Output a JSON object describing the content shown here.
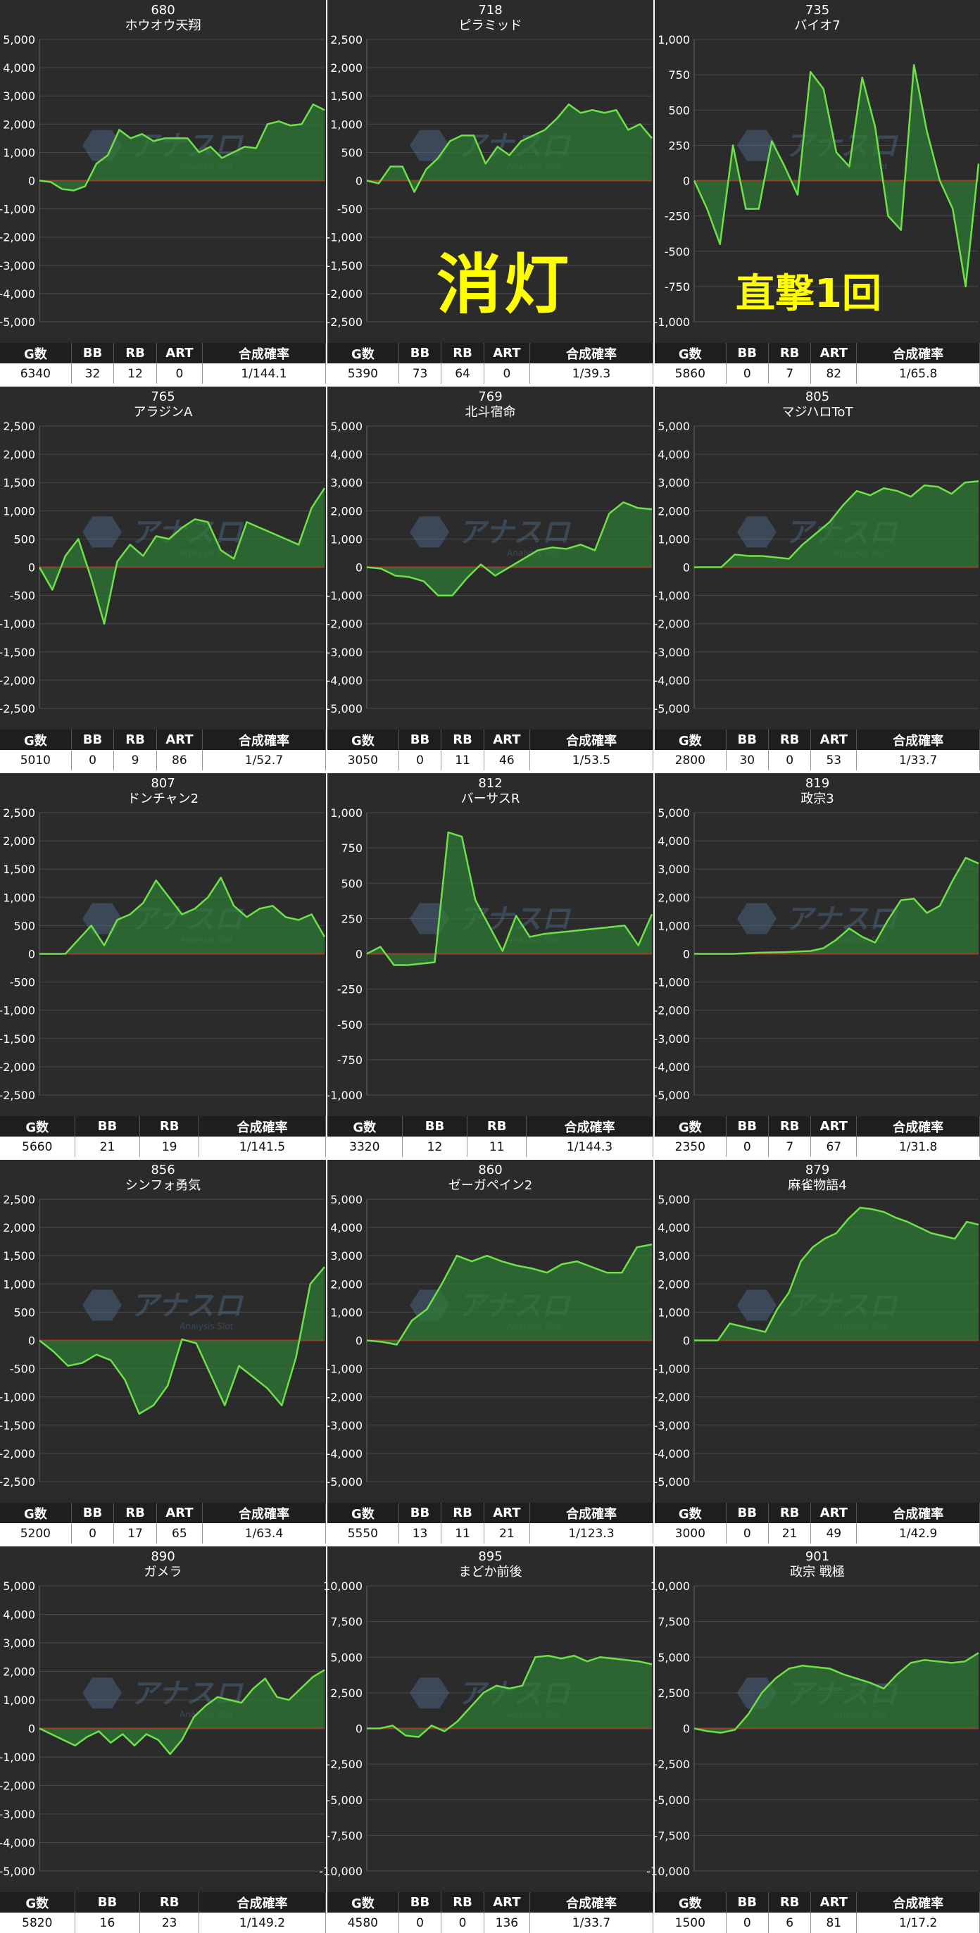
{
  "colors": {
    "background": "#2b2b2b",
    "line": "#6ee04a",
    "area": "#2f7a35",
    "zero_line": "#cc2222",
    "grid": "#4a4a4a",
    "text": "#ffffff",
    "overlay_text": "#ffff00"
  },
  "watermark": {
    "brand": "アナスロ",
    "sub": "Analysis Slot"
  },
  "overlays": [
    {
      "text": "消灯",
      "panel": 1
    },
    {
      "text": "直撃1回",
      "panel": 2
    }
  ],
  "chart_data": [
    {
      "type": "area",
      "number": "680",
      "title": "ホウオウ天翔",
      "ylim": [
        -5000,
        5000
      ],
      "yticks": [
        "5,000",
        "4,000",
        "3,000",
        "2,000",
        "1,000",
        "0",
        "-1,000",
        "-2,000",
        "-3,000",
        "-4,000",
        "-5,000"
      ],
      "values": [
        0,
        -50,
        -300,
        -350,
        -200,
        600,
        900,
        1800,
        1500,
        1650,
        1400,
        1500,
        1500,
        1500,
        1000,
        1200,
        800,
        1000,
        1200,
        1150,
        2000,
        2100,
        1950,
        2000,
        2700,
        2500
      ],
      "stats_headers": [
        "G数",
        "BB",
        "RB",
        "ART",
        "合成確率"
      ],
      "stats": [
        "6340",
        "32",
        "12",
        "0",
        "1/144.1"
      ]
    },
    {
      "type": "area",
      "number": "718",
      "title": "ピラミッド",
      "ylim": [
        -2500,
        2500
      ],
      "yticks": [
        "2,500",
        "2,000",
        "1,500",
        "1,000",
        "500",
        "0",
        "-500",
        "-1,000",
        "-1,500",
        "-2,000",
        "-2,500"
      ],
      "values": [
        0,
        -50,
        250,
        250,
        -200,
        200,
        400,
        700,
        800,
        800,
        300,
        600,
        450,
        700,
        800,
        900,
        1100,
        1350,
        1200,
        1250,
        1200,
        1250,
        900,
        1000,
        750
      ],
      "stats_headers": [
        "G数",
        "BB",
        "RB",
        "ART",
        "合成確率"
      ],
      "stats": [
        "5390",
        "73",
        "64",
        "0",
        "1/39.3"
      ]
    },
    {
      "type": "area",
      "number": "735",
      "title": "バイオ7",
      "ylim": [
        -1000,
        1000
      ],
      "yticks": [
        "1,000",
        "750",
        "500",
        "250",
        "0",
        "-250",
        "-500",
        "-750",
        "-1,000"
      ],
      "values": [
        0,
        -200,
        -450,
        250,
        -200,
        -200,
        280,
        100,
        -100,
        770,
        650,
        200,
        100,
        730,
        380,
        -250,
        -350,
        820,
        350,
        0,
        -200,
        -750,
        120
      ],
      "stats_headers": [
        "G数",
        "BB",
        "RB",
        "ART",
        "合成確率"
      ],
      "stats": [
        "5860",
        "0",
        "7",
        "82",
        "1/65.8"
      ]
    },
    {
      "type": "area",
      "number": "765",
      "title": "アラジンA",
      "ylim": [
        -2500,
        2500
      ],
      "yticks": [
        "2,500",
        "2,000",
        "1,500",
        "1,000",
        "500",
        "0",
        "-500",
        "-1,000",
        "-1,500",
        "-2,000",
        "-2,500"
      ],
      "values": [
        0,
        -400,
        200,
        500,
        -200,
        -1000,
        100,
        400,
        200,
        550,
        500,
        700,
        850,
        800,
        300,
        150,
        800,
        700,
        600,
        500,
        400,
        1050,
        1400
      ],
      "stats_headers": [
        "G数",
        "BB",
        "RB",
        "ART",
        "合成確率"
      ],
      "stats": [
        "5010",
        "0",
        "9",
        "86",
        "1/52.7"
      ]
    },
    {
      "type": "area",
      "number": "769",
      "title": "北斗宿命",
      "ylim": [
        -5000,
        5000
      ],
      "yticks": [
        "5,000",
        "4,000",
        "3,000",
        "2,000",
        "1,000",
        "0",
        "-1,000",
        "-2,000",
        "-3,000",
        "-4,000",
        "-5,000"
      ],
      "values": [
        0,
        -50,
        -300,
        -350,
        -500,
        -1000,
        -1000,
        -400,
        100,
        -300,
        0,
        300,
        600,
        700,
        650,
        800,
        600,
        1900,
        2300,
        2100,
        2050
      ],
      "stats_headers": [
        "G数",
        "BB",
        "RB",
        "ART",
        "合成確率"
      ],
      "stats": [
        "3050",
        "0",
        "11",
        "46",
        "1/53.5"
      ]
    },
    {
      "type": "area",
      "number": "805",
      "title": "マジハロToT",
      "ylim": [
        -5000,
        5000
      ],
      "yticks": [
        "5,000",
        "4,000",
        "3,000",
        "2,000",
        "1,000",
        "0",
        "-1,000",
        "-2,000",
        "-3,000",
        "-4,000",
        "-5,000"
      ],
      "values": [
        0,
        0,
        0,
        450,
        400,
        400,
        350,
        300,
        800,
        1200,
        1600,
        2200,
        2700,
        2550,
        2800,
        2700,
        2500,
        2900,
        2850,
        2600,
        3000,
        3050
      ],
      "stats_headers": [
        "G数",
        "BB",
        "RB",
        "ART",
        "合成確率"
      ],
      "stats": [
        "2800",
        "30",
        "0",
        "53",
        "1/33.7"
      ]
    },
    {
      "type": "area",
      "number": "807",
      "title": "ドンチャン2",
      "ylim": [
        -2500,
        2500
      ],
      "yticks": [
        "2,500",
        "2,000",
        "1,500",
        "1,000",
        "500",
        "0",
        "-500",
        "-1,000",
        "-1,500",
        "-2,000",
        "-2,500"
      ],
      "values": [
        0,
        0,
        0,
        250,
        500,
        150,
        600,
        700,
        900,
        1300,
        1000,
        700,
        800,
        1000,
        1350,
        850,
        650,
        800,
        850,
        650,
        600,
        700,
        300
      ],
      "stats_headers": [
        "G数",
        "BB",
        "RB",
        "合成確率"
      ],
      "stats": [
        "5660",
        "21",
        "19",
        "1/141.5"
      ]
    },
    {
      "type": "area",
      "number": "812",
      "title": "バーサスR",
      "ylim": [
        -1000,
        1000
      ],
      "yticks": [
        "1,000",
        "750",
        "500",
        "250",
        "0",
        "-250",
        "-500",
        "-750",
        "-1,000"
      ],
      "values": [
        0,
        50,
        -80,
        -80,
        -70,
        -60,
        860,
        830,
        380,
        200,
        20,
        270,
        120,
        140,
        150,
        160,
        170,
        180,
        190,
        200,
        60,
        280
      ],
      "stats_headers": [
        "G数",
        "BB",
        "RB",
        "合成確率"
      ],
      "stats": [
        "3320",
        "12",
        "11",
        "1/144.3"
      ]
    },
    {
      "type": "area",
      "number": "819",
      "title": "政宗3",
      "ylim": [
        -5000,
        5000
      ],
      "yticks": [
        "5,000",
        "4,000",
        "3,000",
        "2,000",
        "1,000",
        "0",
        "-1,000",
        "-2,000",
        "-3,000",
        "-4,000",
        "-5,000"
      ],
      "values": [
        0,
        0,
        0,
        0,
        20,
        40,
        50,
        60,
        80,
        100,
        200,
        500,
        900,
        600,
        400,
        1200,
        1900,
        1950,
        1450,
        1700,
        2600,
        3400,
        3200
      ],
      "stats_headers": [
        "G数",
        "BB",
        "RB",
        "ART",
        "合成確率"
      ],
      "stats": [
        "2350",
        "0",
        "7",
        "67",
        "1/31.8"
      ]
    },
    {
      "type": "area",
      "number": "856",
      "title": "シンフォ勇気",
      "ylim": [
        -2500,
        2500
      ],
      "yticks": [
        "2,500",
        "2,000",
        "1,500",
        "1,000",
        "500",
        "0",
        "-500",
        "-1,000",
        "-1,500",
        "-2,000",
        "-2,500"
      ],
      "values": [
        0,
        -200,
        -450,
        -400,
        -250,
        -350,
        -700,
        -1300,
        -1150,
        -800,
        20,
        -50,
        -600,
        -1150,
        -450,
        -650,
        -850,
        -1150,
        -300,
        1000,
        1300
      ],
      "stats_headers": [
        "G数",
        "BB",
        "RB",
        "ART",
        "合成確率"
      ],
      "stats": [
        "5200",
        "0",
        "17",
        "65",
        "1/63.4"
      ]
    },
    {
      "type": "area",
      "number": "860",
      "title": "ゼーガペイン2",
      "ylim": [
        -5000,
        5000
      ],
      "yticks": [
        "5,000",
        "4,000",
        "3,000",
        "2,000",
        "1,000",
        "0",
        "-1,000",
        "-2,000",
        "-3,000",
        "-4,000",
        "-5,000"
      ],
      "values": [
        0,
        -50,
        -150,
        700,
        1100,
        2000,
        3000,
        2800,
        3000,
        2800,
        2650,
        2550,
        2400,
        2700,
        2800,
        2600,
        2400,
        2400,
        3300,
        3400
      ],
      "stats_headers": [
        "G数",
        "BB",
        "RB",
        "ART",
        "合成確率"
      ],
      "stats": [
        "5550",
        "13",
        "11",
        "21",
        "1/123.3"
      ]
    },
    {
      "type": "area",
      "number": "879",
      "title": "麻雀物語4",
      "ylim": [
        -5000,
        5000
      ],
      "yticks": [
        "5,000",
        "4,000",
        "3,000",
        "2,000",
        "1,000",
        "0",
        "-1,000",
        "-2,000",
        "-3,000",
        "-4,000",
        "-5,000"
      ],
      "values": [
        0,
        0,
        0,
        600,
        500,
        400,
        300,
        1100,
        1700,
        2800,
        3300,
        3600,
        3800,
        4300,
        4700,
        4650,
        4550,
        4350,
        4200,
        4000,
        3800,
        3700,
        3600,
        4200,
        4100
      ],
      "stats_headers": [
        "G数",
        "BB",
        "RB",
        "ART",
        "合成確率"
      ],
      "stats": [
        "3000",
        "0",
        "21",
        "49",
        "1/42.9"
      ]
    },
    {
      "type": "area",
      "number": "890",
      "title": "ガメラ",
      "ylim": [
        -5000,
        5000
      ],
      "yticks": [
        "5,000",
        "4,000",
        "3,000",
        "2,000",
        "1,000",
        "0",
        "-1,000",
        "-2,000",
        "-3,000",
        "-4,000",
        "-5,000"
      ],
      "values": [
        0,
        -200,
        -400,
        -600,
        -300,
        -100,
        -500,
        -200,
        -600,
        -200,
        -400,
        -900,
        -400,
        400,
        800,
        1100,
        1000,
        900,
        1400,
        1750,
        1100,
        1000,
        1400,
        1800,
        2050
      ],
      "stats_headers": [
        "G数",
        "BB",
        "RB",
        "合成確率"
      ],
      "stats": [
        "5820",
        "16",
        "23",
        "1/149.2"
      ]
    },
    {
      "type": "area",
      "number": "895",
      "title": "まどか前後",
      "ylim": [
        -10000,
        10000
      ],
      "yticks": [
        "10,000",
        "7,500",
        "5,000",
        "2,500",
        "0",
        "-2,500",
        "-5,000",
        "-7,500",
        "-10,000"
      ],
      "values": [
        0,
        0,
        200,
        -500,
        -600,
        200,
        -200,
        500,
        1500,
        2500,
        3000,
        2800,
        3000,
        5000,
        5100,
        4900,
        5100,
        4700,
        5000,
        4900,
        4800,
        4700,
        4500
      ],
      "stats_headers": [
        "G数",
        "BB",
        "RB",
        "ART",
        "合成確率"
      ],
      "stats": [
        "4580",
        "0",
        "0",
        "136",
        "1/33.7"
      ]
    },
    {
      "type": "area",
      "number": "901",
      "title": "政宗 戦極",
      "ylim": [
        -10000,
        10000
      ],
      "yticks": [
        "10,000",
        "7,500",
        "5,000",
        "2,500",
        "0",
        "-2,500",
        "-5,000",
        "-7,500",
        "-10,000"
      ],
      "values": [
        0,
        -200,
        -300,
        -100,
        1000,
        2500,
        3500,
        4200,
        4400,
        4300,
        4200,
        3800,
        3500,
        3200,
        2800,
        3800,
        4600,
        4800,
        4700,
        4600,
        4700,
        5300
      ],
      "stats_headers": [
        "G数",
        "BB",
        "RB",
        "ART",
        "合成確率"
      ],
      "stats": [
        "1500",
        "0",
        "6",
        "81",
        "1/17.2"
      ]
    }
  ]
}
